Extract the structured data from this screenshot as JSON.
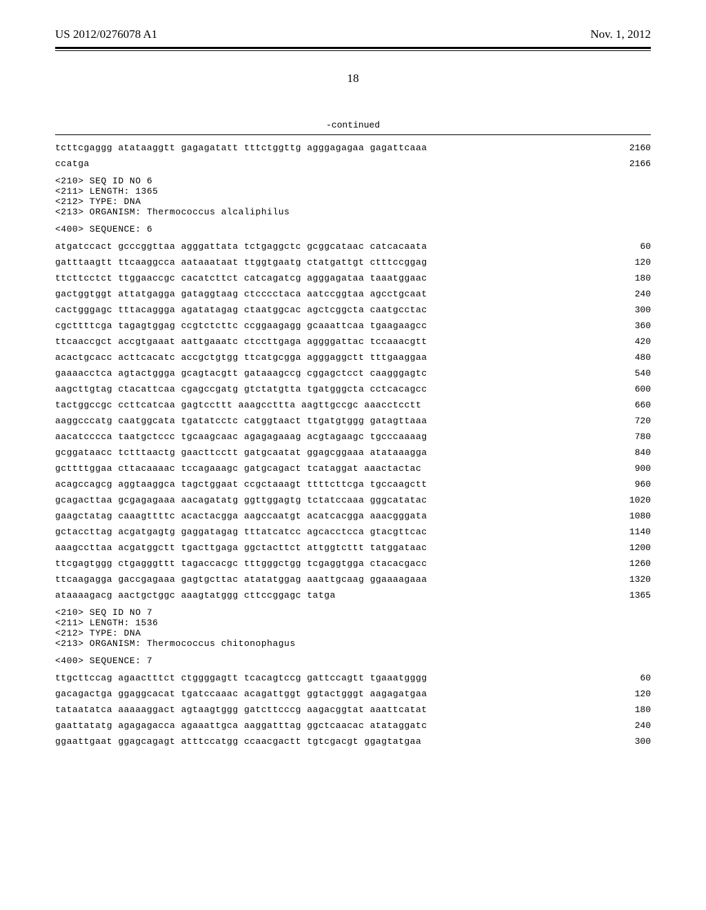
{
  "header": {
    "pub_number": "US 2012/0276078 A1",
    "pub_date": "Nov. 1, 2012",
    "page_number": "18"
  },
  "continued_label": "-continued",
  "sequence_blocks": [
    {
      "type": "sequence",
      "lines": [
        {
          "text": "tcttcgaggg atataaggtt gagagatatt tttctggttg agggagagaa gagattcaaa",
          "pos": "2160"
        },
        {
          "text": "ccatga",
          "pos": "2166"
        }
      ]
    },
    {
      "type": "metadata",
      "lines": [
        "<210> SEQ ID NO 6",
        "<211> LENGTH: 1365",
        "<212> TYPE: DNA",
        "<213> ORGANISM: Thermococcus alcaliphilus"
      ]
    },
    {
      "type": "metadata",
      "lines": [
        "<400> SEQUENCE: 6"
      ]
    },
    {
      "type": "sequence",
      "lines": [
        {
          "text": "atgatccact gcccggttaa agggattata tctgaggctc gcggcataac catcacaata",
          "pos": "60"
        },
        {
          "text": "gatttaagtt ttcaaggcca aataaataat ttggtgaatg ctatgattgt ctttccggag",
          "pos": "120"
        },
        {
          "text": "ttcttcctct ttggaaccgc cacatcttct catcagatcg agggagataa taaatggaac",
          "pos": "180"
        },
        {
          "text": "gactggtggt attatgagga gataggtaag ctcccctaca aatccggtaa agcctgcaat",
          "pos": "240"
        },
        {
          "text": "cactgggagc tttacaggga agatatagag ctaatggcac agctcggcta caatgcctac",
          "pos": "300"
        },
        {
          "text": "cgcttttcga tagagtggag ccgtctcttc ccggaagagg gcaaattcaa tgaagaagcc",
          "pos": "360"
        },
        {
          "text": "ttcaaccgct accgtgaaat aattgaaatc ctccttgaga aggggattac tccaaacgtt",
          "pos": "420"
        },
        {
          "text": "acactgcacc acttcacatc accgctgtgg ttcatgcgga agggaggctt tttgaaggaa",
          "pos": "480"
        },
        {
          "text": "gaaaacctca agtactggga gcagtacgtt gataaagccg cggagctcct caagggagtc",
          "pos": "540"
        },
        {
          "text": "aagcttgtag ctacattcaa cgagccgatg gtctatgtta tgatgggcta cctcacagcc",
          "pos": "600"
        },
        {
          "text": "tactggccgc ccttcatcaa gagtccttt aaagccttta aagttgccgc aaacctcctt",
          "pos": "660"
        },
        {
          "text": "aaggcccatg caatggcata tgatatcctc catggtaact ttgatgtggg gatagttaaa",
          "pos": "720"
        },
        {
          "text": "aacatcccca taatgctccc tgcaagcaac agagagaaag acgtagaagc tgcccaaaag",
          "pos": "780"
        },
        {
          "text": "gcggataacc tctttaactg gaacttcctt gatgcaatat ggagcggaaa atataaagga",
          "pos": "840"
        },
        {
          "text": "gcttttggaa cttacaaaac tccagaaagc gatgcagact tcataggat aaactactac",
          "pos": "900"
        },
        {
          "text": "acagccagcg aggtaaggca tagctggaat ccgctaaagt ttttcttcga tgccaagctt",
          "pos": "960"
        },
        {
          "text": "gcagacttaa gcgagagaaa aacagatatg ggttggagtg tctatccaaa gggcatatac",
          "pos": "1020"
        },
        {
          "text": "gaagctatag caaagttttc acactacgga aagccaatgt acatcacgga aaacgggata",
          "pos": "1080"
        },
        {
          "text": "gctaccttag acgatgagtg gaggatagag tttatcatcc agcacctcca gtacgttcac",
          "pos": "1140"
        },
        {
          "text": "aaagccttaa acgatggctt tgacttgaga ggctacttct attggtcttt tatggataac",
          "pos": "1200"
        },
        {
          "text": "ttcgagtggg ctgagggttt tagaccacgc tttgggctgg tcgaggtgga ctacacgacc",
          "pos": "1260"
        },
        {
          "text": "ttcaagagga gaccgagaaa gagtgcttac atatatggag aaattgcaag ggaaaagaaa",
          "pos": "1320"
        },
        {
          "text": "ataaaagacg aactgctggc aaagtatggg cttccggagc tatga",
          "pos": "1365"
        }
      ]
    },
    {
      "type": "metadata",
      "lines": [
        "<210> SEQ ID NO 7",
        "<211> LENGTH: 1536",
        "<212> TYPE: DNA",
        "<213> ORGANISM: Thermococcus chitonophagus"
      ]
    },
    {
      "type": "metadata",
      "lines": [
        "<400> SEQUENCE: 7"
      ]
    },
    {
      "type": "sequence",
      "lines": [
        {
          "text": "ttgcttccag agaactttct ctggggagtt tcacagtccg gattccagtt tgaaatgggg",
          "pos": "60"
        },
        {
          "text": "gacagactga ggaggcacat tgatccaaac acagattggt ggtactgggt aagagatgaa",
          "pos": "120"
        },
        {
          "text": "tataatatca aaaaaggact agtaagtggg gatcttcccg aagacggtat aaattcatat",
          "pos": "180"
        },
        {
          "text": "gaattatatg agagagacca agaaattgca aaggatttag ggctcaacac atataggatc",
          "pos": "240"
        },
        {
          "text": "ggaattgaat ggagcagagt atttccatgg ccaacgactt tgtcgacgt ggagtatgaa",
          "pos": "300"
        }
      ]
    }
  ]
}
